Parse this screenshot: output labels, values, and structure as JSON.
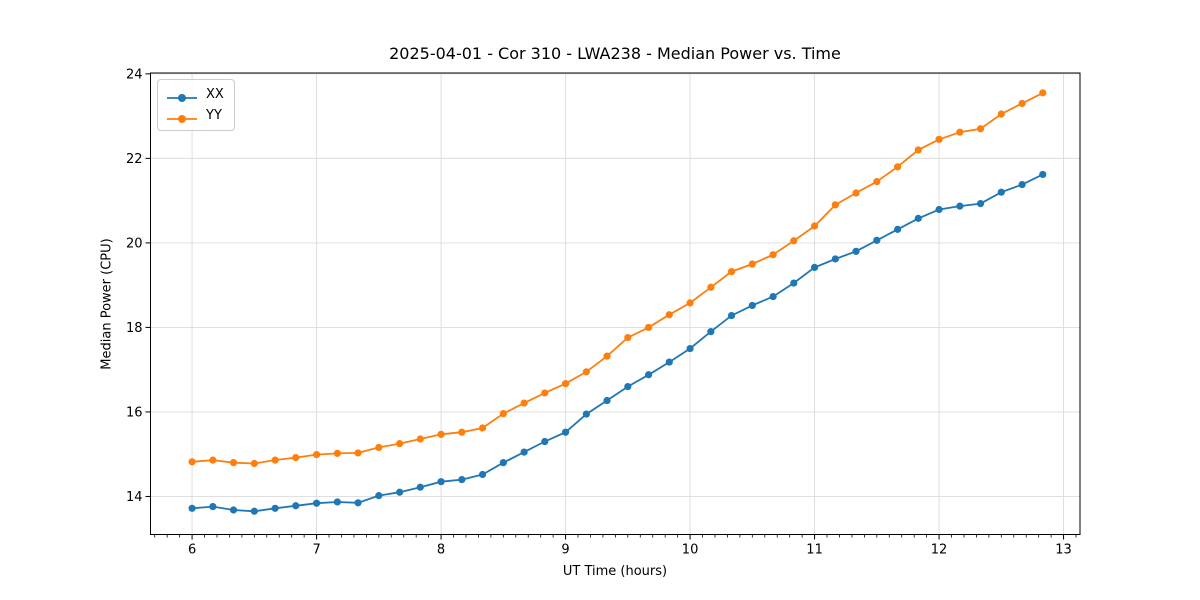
{
  "figure": {
    "title": "2025-04-01 - Cor 310 - LWA238 - Median Power vs. Time"
  },
  "legend": {
    "entries": [
      {
        "label": "XX",
        "color": "#1f77b4"
      },
      {
        "label": "YY",
        "color": "#ff7f0e"
      }
    ]
  },
  "style": {
    "grid_color": "#dcdcdc",
    "spine_color": "#000000",
    "tick_label_color": "#000000"
  },
  "chart_data": {
    "type": "line",
    "title": "2025-04-01 - Cor 310 - LWA238 - Median Power vs. Time",
    "xlabel": "UT Time (hours)",
    "ylabel": "Median Power (CPU)",
    "xlim": [
      5.666,
      13.132
    ],
    "ylim": [
      13.1,
      24.02
    ],
    "x_major_ticks": [
      6,
      7,
      8,
      9,
      10,
      11,
      12,
      13
    ],
    "x_minor_tick_step": 0.1,
    "y_major_ticks": [
      14,
      16,
      18,
      20,
      22,
      24
    ],
    "grid": true,
    "legend_position": "upper left",
    "marker": "circle",
    "x": [
      6.0,
      6.167,
      6.333,
      6.5,
      6.667,
      6.833,
      7.0,
      7.167,
      7.333,
      7.5,
      7.667,
      7.833,
      8.0,
      8.167,
      8.333,
      8.5,
      8.667,
      8.833,
      9.0,
      9.167,
      9.333,
      9.5,
      9.667,
      9.833,
      10.0,
      10.167,
      10.333,
      10.5,
      10.667,
      10.833,
      11.0,
      11.167,
      11.333,
      11.5,
      11.667,
      11.833,
      12.0,
      12.167,
      12.333,
      12.5,
      12.667,
      12.833
    ],
    "series": [
      {
        "name": "XX",
        "color": "#1f77b4",
        "values": [
          13.72,
          13.76,
          13.68,
          13.65,
          13.72,
          13.78,
          13.84,
          13.87,
          13.85,
          14.02,
          14.1,
          14.22,
          14.35,
          14.4,
          14.52,
          14.8,
          15.05,
          15.3,
          15.52,
          15.95,
          16.27,
          16.6,
          16.88,
          17.18,
          17.5,
          17.9,
          18.28,
          18.52,
          18.73,
          19.05,
          19.42,
          19.62,
          19.8,
          20.06,
          20.32,
          20.58,
          20.79,
          20.87,
          20.93,
          21.2,
          21.38,
          21.62
        ]
      },
      {
        "name": "YY",
        "color": "#ff7f0e",
        "values": [
          14.82,
          14.86,
          14.8,
          14.78,
          14.86,
          14.92,
          14.99,
          15.02,
          15.03,
          15.16,
          15.25,
          15.36,
          15.47,
          15.52,
          15.62,
          15.96,
          16.21,
          16.45,
          16.67,
          16.95,
          17.32,
          17.76,
          18.0,
          18.3,
          18.58,
          18.95,
          19.32,
          19.5,
          19.72,
          20.05,
          20.4,
          20.9,
          21.18,
          21.45,
          21.8,
          22.2,
          22.45,
          22.62,
          22.7,
          23.05,
          23.3,
          23.55
        ]
      }
    ]
  }
}
